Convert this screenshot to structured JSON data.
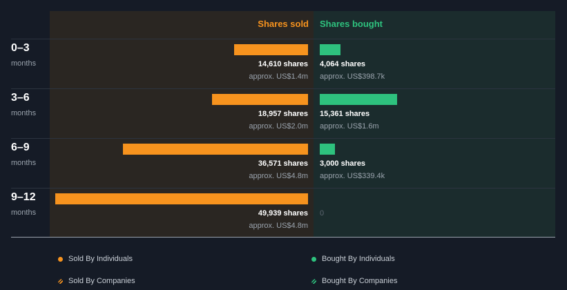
{
  "chart_data": {
    "type": "bar",
    "headers": {
      "sold": "Shares sold",
      "bought": "Shares bought"
    },
    "colors": {
      "sold": "#f7931e",
      "bought": "#2ec27e",
      "background": "#151b26"
    },
    "sold_max": 49939,
    "rows": [
      {
        "period": "0–3",
        "unit": "months",
        "sold": {
          "shares": 14610,
          "shares_text": "14,610 shares",
          "value_text": "approx. US$1.4m"
        },
        "bought": {
          "shares": 4064,
          "shares_text": "4,064 shares",
          "value_text": "approx. US$398.7k"
        }
      },
      {
        "period": "3–6",
        "unit": "months",
        "sold": {
          "shares": 18957,
          "shares_text": "18,957 shares",
          "value_text": "approx. US$2.0m"
        },
        "bought": {
          "shares": 15361,
          "shares_text": "15,361 shares",
          "value_text": "approx. US$1.6m"
        }
      },
      {
        "period": "6–9",
        "unit": "months",
        "sold": {
          "shares": 36571,
          "shares_text": "36,571 shares",
          "value_text": "approx. US$4.8m"
        },
        "bought": {
          "shares": 3000,
          "shares_text": "3,000 shares",
          "value_text": "approx. US$339.4k"
        }
      },
      {
        "period": "9–12",
        "unit": "months",
        "sold": {
          "shares": 49939,
          "shares_text": "49,939 shares",
          "value_text": "approx. US$4.8m"
        },
        "bought": {
          "shares": 0,
          "shares_text": "0",
          "value_text": ""
        }
      }
    ],
    "legend": [
      {
        "label": "Sold By Individuals",
        "color": "#f7931e",
        "style": "solid"
      },
      {
        "label": "Bought By Individuals",
        "color": "#2ec27e",
        "style": "solid"
      },
      {
        "label": "Sold By Companies",
        "color": "#f7931e",
        "style": "striped"
      },
      {
        "label": "Bought By Companies",
        "color": "#2ec27e",
        "style": "striped"
      }
    ]
  }
}
